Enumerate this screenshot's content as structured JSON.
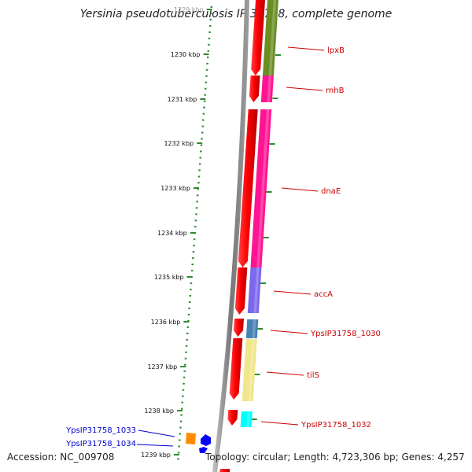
{
  "title": "Yersinia pseudotuberculosis IP 31758, complete genome",
  "accession": "Accession: NC_009708",
  "summary": "Topology: circular; Length: 4,723,306 bp; Genes: 4,257",
  "colors": {
    "backbone": "#8a8a8a",
    "ruler": "#2e8b2e",
    "gene_forward": "#ff0000",
    "label_red": "#cc0000",
    "label_blue": "#0000cc"
  },
  "ticks": [
    {
      "label": "1229 kbp",
      "faded": true
    },
    {
      "label": "1230 kbp"
    },
    {
      "label": "1231 kbp"
    },
    {
      "label": "1232 kbp"
    },
    {
      "label": "1233 kbp"
    },
    {
      "label": "1234 kbp"
    },
    {
      "label": "1235 kbp"
    },
    {
      "label": "1236 kbp"
    },
    {
      "label": "1237 kbp"
    },
    {
      "label": "1238 kbp"
    },
    {
      "label": "1239 kbp"
    }
  ],
  "genes": [
    {
      "label": "lpxB",
      "cog_color": "#6b8e23"
    },
    {
      "label": "rnhB",
      "cog_color": "#ff1493"
    },
    {
      "label": "dnaE",
      "cog_color": "#ff1493"
    },
    {
      "label": "accA",
      "cog_color": "#7b68ee"
    },
    {
      "label": "YpsIP31758_1030",
      "cog_color": "#4682b4"
    },
    {
      "label": "tilS",
      "cog_color": "#f0e68c"
    },
    {
      "label": "YpsIP31758_1032",
      "cog_color": "#00ffff"
    }
  ],
  "left_genes": [
    {
      "label": "YpsIP31758_1033",
      "color": "#ff8c00"
    },
    {
      "label": "YpsIP31758_1034",
      "color": "#0000ff"
    }
  ]
}
